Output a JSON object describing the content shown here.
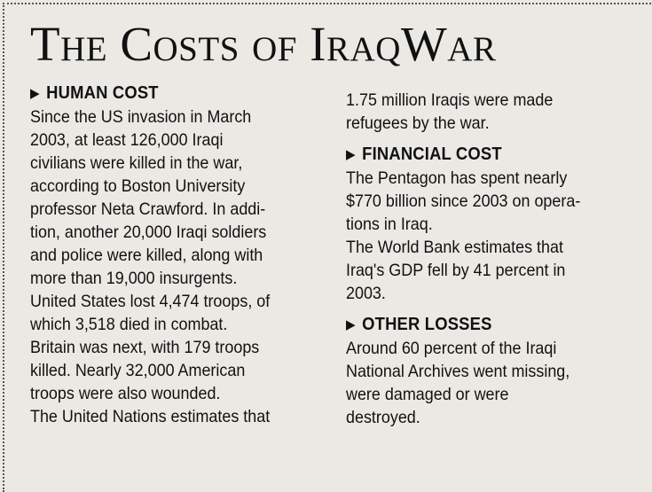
{
  "title": "The Costs of IraqWar",
  "arrow_glyph": "▶",
  "human_cost": {
    "heading": "HUMAN COST",
    "lines": [
      "Since the US invasion in March",
      "2003, at least 126,000 Iraqi",
      "civilians were killed in the war,",
      "according to Boston University",
      "professor Neta Crawford. In addi-",
      "tion, another 20,000 Iraqi soldiers",
      "and police were killed, along with",
      "more than 19,000 insurgents.",
      "United States lost 4,474 troops, of",
      "which 3,518 died in combat.",
      "Britain was next, with 179 troops",
      "killed. Nearly 32,000 American",
      "troops were also wounded.",
      "The United Nations estimates that",
      "1.75 million Iraqis were made",
      "refugees by the war."
    ]
  },
  "financial_cost": {
    "heading": "FINANCIAL COST",
    "lines": [
      "The Pentagon has spent nearly",
      "$770 billion since 2003 on opera-",
      "tions in Iraq.",
      "The World Bank estimates that",
      "Iraq's GDP fell by 41 percent in",
      "2003."
    ]
  },
  "other_losses": {
    "heading": "OTHER LOSSES",
    "lines": [
      "Around 60 percent of the Iraqi",
      "National Archives went missing,",
      "were damaged or were",
      "destroyed."
    ]
  }
}
